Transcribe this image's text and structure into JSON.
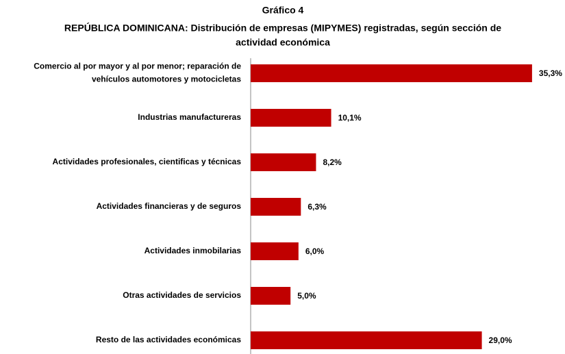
{
  "chart_data": {
    "type": "bar",
    "orientation": "horizontal",
    "title": "Gráfico 4",
    "subtitle": "REPÚBLICA DOMINICANA: Distribución de empresas (MIPYMES) registradas, según sección de actividad económica",
    "categories": [
      "Comercio al por mayor y al por menor; reparación de vehículos automotores y motocicletas",
      "Industrias manufactureras",
      "Actividades profesionales, cientificas y técnicas",
      "Actividades financieras y de seguros",
      "Actividades inmobilarias",
      "Otras actividades de servicios",
      "Resto de las actividades económicas"
    ],
    "values": [
      35.3,
      10.1,
      8.2,
      6.3,
      6.0,
      5.0,
      29.0
    ],
    "value_labels": [
      "35,3%",
      "10,1%",
      "8,2%",
      "6,3%",
      "6,0%",
      "5,0%",
      "29,0%"
    ],
    "color": "#c00000"
  }
}
